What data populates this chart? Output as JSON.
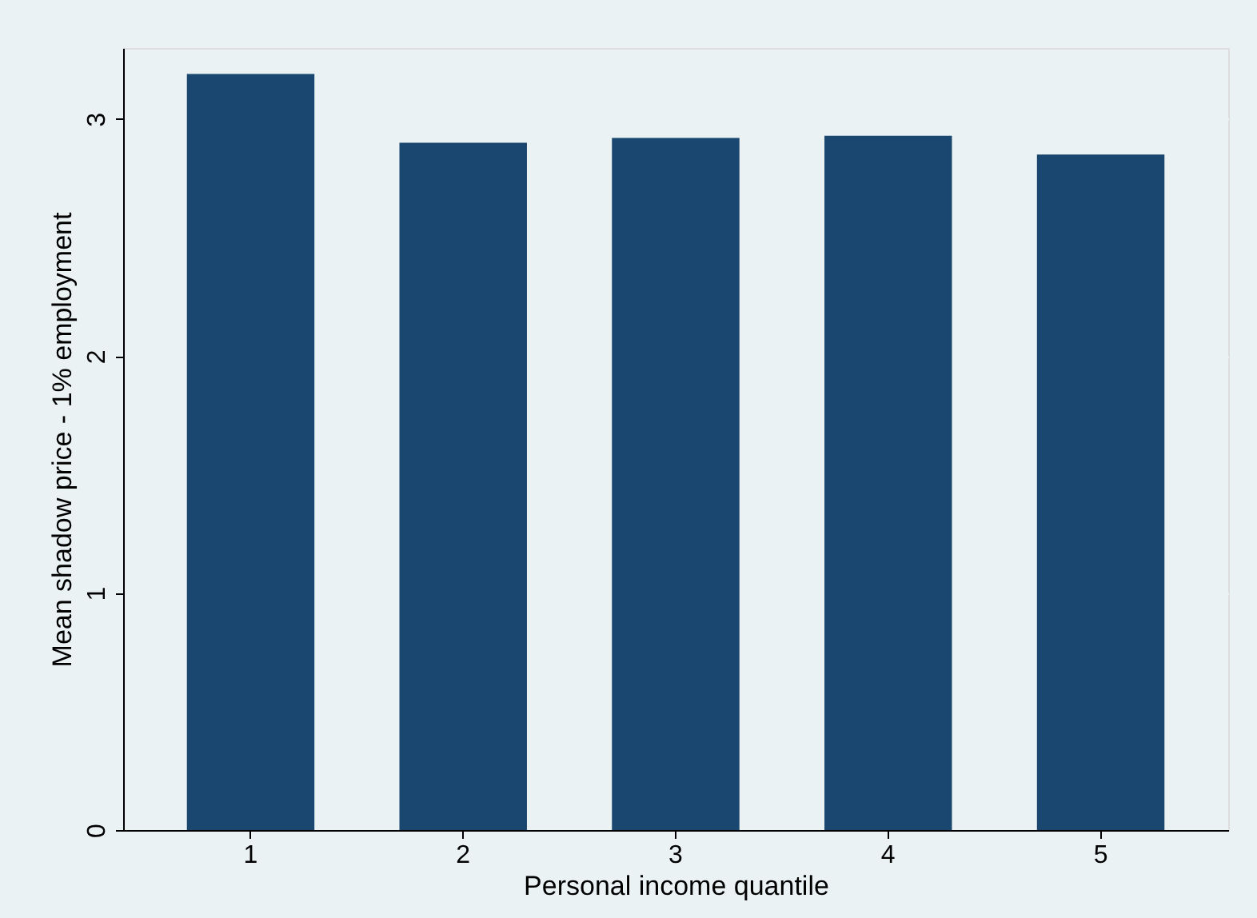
{
  "chart_data": {
    "type": "bar",
    "xlabel": "Personal income quantile",
    "ylabel": "Mean shadow price - 1% employment",
    "categories": [
      "1",
      "2",
      "3",
      "4",
      "5"
    ],
    "values": [
      3.19,
      2.9,
      2.92,
      2.93,
      2.85
    ],
    "color": "#1a476f",
    "ylim": [
      0,
      3.3
    ],
    "yticks": [
      0,
      1,
      2,
      3
    ],
    "grid": "y"
  }
}
